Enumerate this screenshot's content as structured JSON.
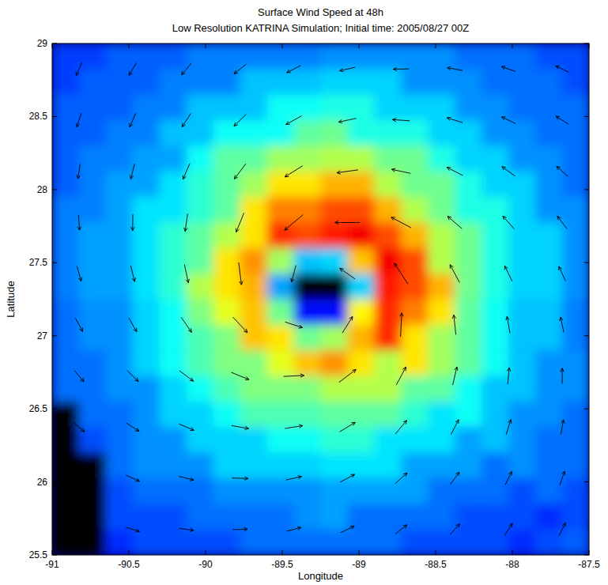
{
  "chart_data": {
    "type": "heatmap",
    "title": "Surface Wind Speed at 48h",
    "subtitle": "Low Resolution KATRINA Simulation; Initial time: 2005/08/27 00Z",
    "x_label": "Longitude",
    "y_label": "Latitude",
    "xlim": [
      -91,
      -87.5
    ],
    "ylim": [
      25.5,
      29
    ],
    "xticks": [
      -91,
      -90.5,
      -90,
      -89.5,
      -89,
      -88.5,
      -88,
      -87.5
    ],
    "yticks": [
      25.5,
      26,
      26.5,
      27,
      27.5,
      28,
      28.5,
      29
    ],
    "grid": false,
    "color_range": [
      0,
      60
    ],
    "cells": [
      [
        11,
        11,
        13,
        13,
        13,
        15,
        15,
        15,
        15,
        15,
        16,
        16,
        16,
        16,
        16,
        14,
        14,
        14,
        12,
        12
      ],
      [
        11,
        13,
        13,
        13,
        15,
        15,
        15,
        19,
        19,
        19,
        20,
        20,
        20,
        16,
        16,
        16,
        14,
        14,
        14,
        12
      ],
      [
        13,
        13,
        13,
        15,
        15,
        19,
        19,
        19,
        23,
        23,
        24,
        24,
        20,
        20,
        20,
        16,
        16,
        14,
        14,
        14
      ],
      [
        13,
        13,
        15,
        15,
        19,
        19,
        23,
        23,
        23,
        28,
        29,
        24,
        24,
        24,
        20,
        20,
        16,
        16,
        14,
        14
      ],
      [
        13,
        15,
        15,
        17,
        17,
        23,
        28,
        28,
        32,
        32,
        33,
        33,
        29,
        29,
        24,
        20,
        20,
        16,
        16,
        14
      ],
      [
        13,
        15,
        17,
        17,
        21,
        25,
        28,
        32,
        39,
        39,
        42,
        42,
        33,
        29,
        29,
        24,
        20,
        20,
        16,
        14
      ],
      [
        15,
        15,
        17,
        21,
        21,
        25,
        28,
        39,
        45,
        45,
        48,
        48,
        42,
        33,
        29,
        24,
        24,
        20,
        16,
        16
      ],
      [
        15,
        17,
        17,
        21,
        25,
        28,
        33,
        39,
        50,
        48,
        51,
        53,
        48,
        42,
        33,
        29,
        24,
        20,
        20,
        16
      ],
      [
        15,
        17,
        17,
        21,
        25,
        28,
        39,
        44,
        32,
        19,
        20,
        41,
        53,
        48,
        33,
        29,
        24,
        20,
        20,
        16
      ],
      [
        15,
        17,
        17,
        21,
        25,
        33,
        39,
        42,
        17,
        null,
        null,
        20,
        51,
        48,
        42,
        29,
        24,
        20,
        20,
        16
      ],
      [
        14,
        16,
        16,
        20,
        23,
        30,
        36,
        41,
        29,
        8,
        8,
        38,
        50,
        45,
        39,
        28,
        23,
        19,
        19,
        15
      ],
      [
        14,
        16,
        16,
        20,
        23,
        27,
        30,
        41,
        39,
        29,
        32,
        42,
        50,
        39,
        32,
        28,
        23,
        19,
        19,
        15
      ],
      [
        14,
        14,
        16,
        20,
        23,
        27,
        30,
        30,
        36,
        41,
        44,
        39,
        33,
        39,
        32,
        28,
        23,
        19,
        16,
        16
      ],
      [
        14,
        14,
        16,
        16,
        20,
        23,
        27,
        30,
        30,
        30,
        33,
        33,
        33,
        28,
        28,
        23,
        19,
        19,
        16,
        16
      ],
      [
        null,
        14,
        14,
        16,
        20,
        20,
        23,
        27,
        27,
        27,
        28,
        28,
        28,
        25,
        21,
        23,
        19,
        16,
        16,
        14
      ],
      [
        null,
        12,
        14,
        16,
        16,
        20,
        20,
        20,
        23,
        23,
        25,
        25,
        21,
        21,
        21,
        17,
        19,
        16,
        14,
        14
      ],
      [
        null,
        null,
        14,
        16,
        16,
        16,
        20,
        20,
        20,
        20,
        21,
        21,
        21,
        17,
        17,
        17,
        14,
        16,
        14,
        14
      ],
      [
        null,
        null,
        12,
        14,
        14,
        14,
        16,
        16,
        16,
        16,
        17,
        17,
        17,
        17,
        14,
        14,
        14,
        12,
        14,
        12
      ],
      [
        null,
        null,
        12,
        12,
        12,
        14,
        14,
        14,
        14,
        16,
        17,
        14,
        14,
        14,
        14,
        12,
        12,
        12,
        10,
        12
      ],
      [
        null,
        null,
        10,
        12,
        12,
        12,
        12,
        14,
        14,
        14,
        14,
        14,
        14,
        12,
        12,
        12,
        12,
        10,
        12,
        13
      ]
    ],
    "arrow_directions": [
      [
        246,
        239,
        230,
        219,
        207,
        193,
        181,
        170,
        161,
        154
      ],
      [
        253,
        246,
        237,
        224,
        209,
        192,
        176,
        163,
        154,
        147
      ],
      [
        262,
        256,
        247,
        233,
        212,
        188,
        168,
        153,
        144,
        138
      ],
      [
        273,
        269,
        262,
        248,
        220,
        180,
        152,
        139,
        131,
        127
      ],
      [
        286,
        284,
        282,
        277,
        255,
        145,
        123,
        118,
        116,
        115
      ],
      [
        298,
        300,
        305,
        313,
        342,
        58,
        87,
        96,
        100,
        102
      ],
      [
        310,
        315,
        323,
        338,
        3,
        37,
        62,
        77,
        85,
        90
      ],
      [
        320,
        327,
        337,
        350,
        9,
        31,
        50,
        63,
        73,
        80
      ],
      [
        329,
        336,
        346,
        358,
        12,
        28,
        42,
        54,
        64,
        71
      ],
      [
        336,
        343,
        352,
        2,
        14,
        26,
        38,
        48,
        57,
        64
      ]
    ]
  }
}
